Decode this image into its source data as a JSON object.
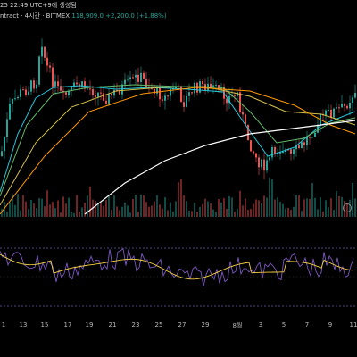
{
  "header": {
    "datetime": "25 22:49 UTC+9에 생성됨",
    "symbol": "ntract",
    "interval": "4시간",
    "exchange": "BITMEX",
    "price": "118,909.0",
    "change": "+2,200.0 (+1.88%)"
  },
  "x_axis": {
    "labels": [
      "1",
      "13",
      "15",
      "17",
      "19",
      "21",
      "23",
      "25",
      "27",
      "29",
      "8월",
      "3",
      "5",
      "7",
      "9",
      "11"
    ]
  },
  "colors": {
    "up": "#26a69a",
    "down": "#ef5350",
    "ma_short": "#26c6da",
    "ma_green": "#66bb6a",
    "ma_yellow": "#d4c24a",
    "ma_orange": "#ff9800",
    "ma_white": "#ffffff",
    "rsi": "#7e57c2",
    "rsi_ma": "#f5d142"
  },
  "icons": {
    "replay": "clock-icon"
  }
}
